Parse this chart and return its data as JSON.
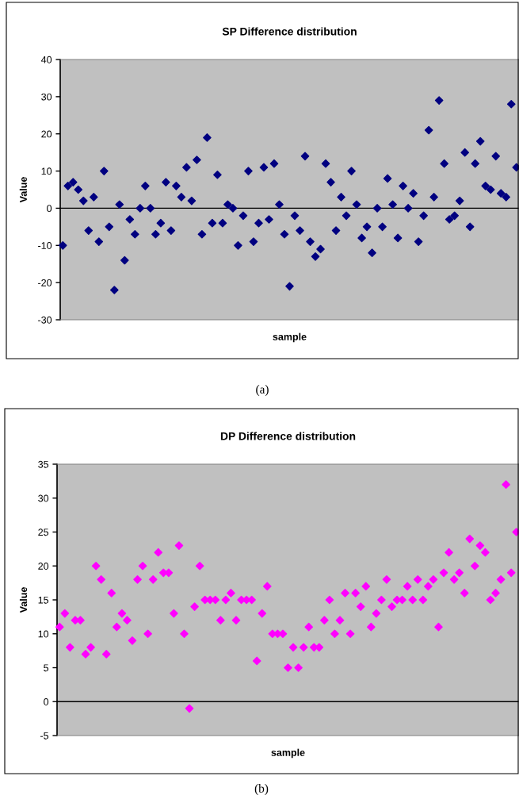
{
  "chart_data": [
    {
      "type": "scatter",
      "title": "SP Difference distribution",
      "xlabel": "sample",
      "ylabel": "Value",
      "categories": [
        null,
        null,
        null,
        null,
        null,
        null,
        null,
        null,
        null,
        null,
        null,
        null,
        null,
        null,
        null,
        null,
        null,
        null,
        null,
        null,
        null,
        null,
        null,
        null,
        null,
        null,
        null,
        null,
        null,
        null,
        null,
        null,
        null,
        null,
        null,
        null,
        null,
        null,
        null,
        null,
        null,
        null,
        null,
        null,
        null,
        null,
        null,
        null,
        null,
        null,
        null,
        null,
        null,
        null,
        null,
        null,
        null,
        null,
        null,
        null,
        null,
        null,
        null,
        null,
        null,
        null,
        null,
        null,
        null,
        null,
        null,
        null,
        null,
        null,
        null,
        null,
        null,
        null,
        null,
        null,
        null,
        null,
        null,
        null,
        null,
        null,
        null,
        null,
        null
      ],
      "series": [
        {
          "color": "#000080",
          "values": [
            -10,
            6,
            7,
            5,
            2,
            -6,
            3,
            -9,
            10,
            -5,
            -22,
            1,
            -14,
            -3,
            -7,
            0,
            6,
            0,
            -7,
            -4,
            7,
            -6,
            6,
            3,
            11,
            2,
            13,
            -7,
            19,
            -4,
            9,
            -4,
            1,
            0,
            -10,
            -2,
            10,
            -9,
            -4,
            11,
            -3,
            12,
            1,
            -7,
            -21,
            -2,
            -6,
            14,
            -9,
            -13,
            -11,
            12,
            7,
            -6,
            3,
            -2,
            10,
            1,
            -8,
            -5,
            -12,
            0,
            -5,
            8,
            1,
            -8,
            6,
            0,
            4,
            -9,
            -2,
            21,
            3,
            29,
            12,
            -3,
            -2,
            2,
            15,
            -5,
            12,
            18,
            6,
            5,
            14,
            4,
            3,
            28,
            11
          ]
        }
      ],
      "ylim": [
        -30,
        40
      ],
      "yticks": [
        -30,
        -20,
        -10,
        0,
        10,
        20,
        30,
        40
      ],
      "tick_labels": "y",
      "grid": false,
      "legend": false,
      "marker": "diamond",
      "ref_lines": [
        {
          "axis": "y",
          "value": 0,
          "color": "#000000"
        }
      ],
      "annotations": [
        "(a)"
      ]
    },
    {
      "type": "scatter",
      "title": "DP Difference distribution",
      "xlabel": "sample",
      "ylabel": "Value",
      "categories": [
        null,
        null,
        null,
        null,
        null,
        null,
        null,
        null,
        null,
        null,
        null,
        null,
        null,
        null,
        null,
        null,
        null,
        null,
        null,
        null,
        null,
        null,
        null,
        null,
        null,
        null,
        null,
        null,
        null,
        null,
        null,
        null,
        null,
        null,
        null,
        null,
        null,
        null,
        null,
        null,
        null,
        null,
        null,
        null,
        null,
        null,
        null,
        null,
        null,
        null,
        null,
        null,
        null,
        null,
        null,
        null,
        null,
        null,
        null,
        null,
        null,
        null,
        null,
        null,
        null,
        null,
        null,
        null,
        null,
        null,
        null,
        null,
        null,
        null,
        null,
        null,
        null,
        null,
        null,
        null,
        null,
        null,
        null,
        null,
        null,
        null,
        null,
        null,
        null
      ],
      "series": [
        {
          "color": "#ff00ff",
          "values": [
            11,
            13,
            8,
            12,
            12,
            7,
            8,
            20,
            18,
            7,
            16,
            11,
            13,
            12,
            9,
            18,
            20,
            10,
            18,
            22,
            19,
            19,
            13,
            23,
            10,
            -1,
            14,
            20,
            15,
            15,
            15,
            12,
            15,
            16,
            12,
            15,
            15,
            15,
            6,
            13,
            17,
            10,
            10,
            10,
            5,
            8,
            5,
            8,
            11,
            8,
            8,
            12,
            15,
            10,
            12,
            16,
            10,
            16,
            14,
            17,
            11,
            13,
            15,
            18,
            14,
            15,
            15,
            17,
            15,
            18,
            15,
            17,
            18,
            11,
            19,
            22,
            18,
            19,
            16,
            24,
            20,
            23,
            22,
            15,
            16,
            18,
            32,
            19,
            25
          ]
        }
      ],
      "ylim": [
        -5,
        35
      ],
      "yticks": [
        -5,
        0,
        5,
        10,
        15,
        20,
        25,
        30,
        35
      ],
      "tick_labels": "y",
      "grid": false,
      "legend": false,
      "marker": "diamond",
      "ref_lines": [
        {
          "axis": "y",
          "value": 0,
          "color": "#000000"
        }
      ],
      "annotations": [
        "(b)"
      ]
    }
  ]
}
